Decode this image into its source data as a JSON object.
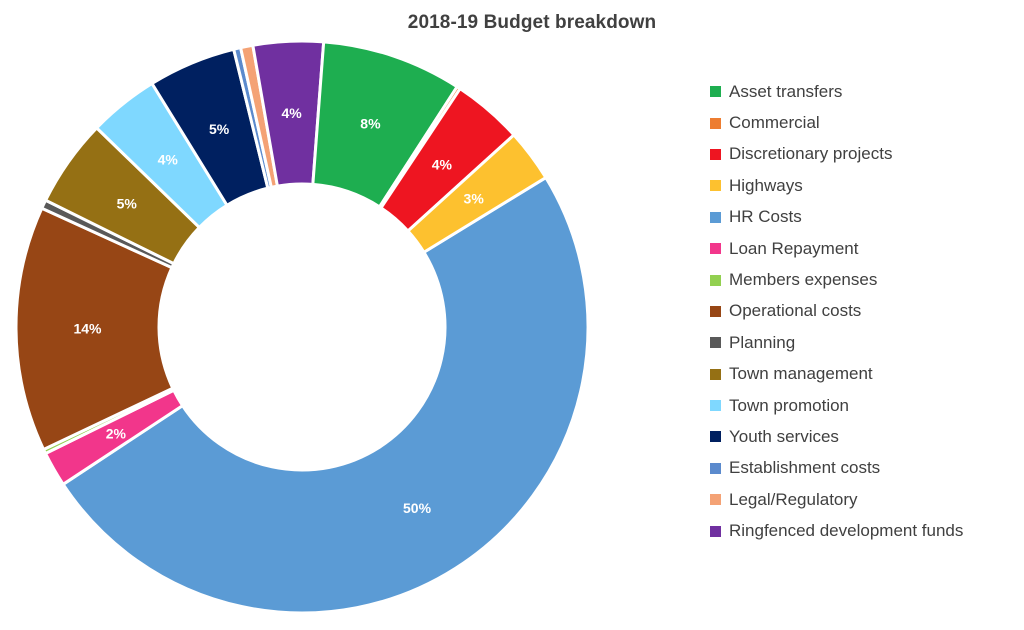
{
  "chart_data": {
    "type": "pie",
    "donut": true,
    "title": "2018-19 Budget breakdown",
    "legend_position": "right",
    "slices": [
      {
        "name": "HR Costs",
        "value": 50,
        "label": "50%",
        "color": "#5B9BD5"
      },
      {
        "name": "Loan Repayment",
        "value": 2,
        "label": "2%",
        "color": "#F2368B"
      },
      {
        "name": "Members expenses",
        "value": 0.25,
        "label": "",
        "color": "#92D050"
      },
      {
        "name": "Operational costs",
        "value": 14,
        "label": "14%",
        "color": "#974615"
      },
      {
        "name": "Planning",
        "value": 0.5,
        "label": "",
        "color": "#595959"
      },
      {
        "name": "Town management",
        "value": 5,
        "label": "5%",
        "color": "#957014"
      },
      {
        "name": "Town promotion",
        "value": 4,
        "label": "4%",
        "color": "#7FD8FF"
      },
      {
        "name": "Youth services",
        "value": 5,
        "label": "5%",
        "color": "#002060"
      },
      {
        "name": "Establishment costs",
        "value": 0.4,
        "label": "",
        "color": "#5B8ACD"
      },
      {
        "name": "Legal/Regulatory",
        "value": 0.7,
        "label": "",
        "color": "#F4A275"
      },
      {
        "name": "Ringfenced development funds",
        "value": 4,
        "label": "4%",
        "color": "#7030A0"
      },
      {
        "name": "Asset transfers",
        "value": 8,
        "label": "8%",
        "color": "#1EAE50"
      },
      {
        "name": "Commercial",
        "value": 0.2,
        "label": "",
        "color": "#ED7D31"
      },
      {
        "name": "Discretionary projects",
        "value": 4,
        "label": "4%",
        "color": "#EE1521"
      },
      {
        "name": "Highways",
        "value": 3,
        "label": "3%",
        "color": "#FDC12F"
      }
    ],
    "legend": [
      {
        "label": "Asset transfers",
        "color": "#1EAE50"
      },
      {
        "label": "Commercial",
        "color": "#ED7D31"
      },
      {
        "label": "Discretionary projects",
        "color": "#EE1521"
      },
      {
        "label": "Highways",
        "color": "#FDC12F"
      },
      {
        "label": "HR Costs",
        "color": "#5B9BD5"
      },
      {
        "label": "Loan Repayment",
        "color": "#F2368B"
      },
      {
        "label": "Members expenses",
        "color": "#92D050"
      },
      {
        "label": "Operational costs",
        "color": "#974615"
      },
      {
        "label": "Planning",
        "color": "#595959"
      },
      {
        "label": "Town management",
        "color": "#957014"
      },
      {
        "label": "Town promotion",
        "color": "#7FD8FF"
      },
      {
        "label": "Youth services",
        "color": "#002060"
      },
      {
        "label": "Establishment costs",
        "color": "#5B8ACD"
      },
      {
        "label": "Legal/Regulatory",
        "color": "#F4A275"
      },
      {
        "label": "Ringfenced development funds",
        "color": "#7030A0"
      }
    ]
  }
}
